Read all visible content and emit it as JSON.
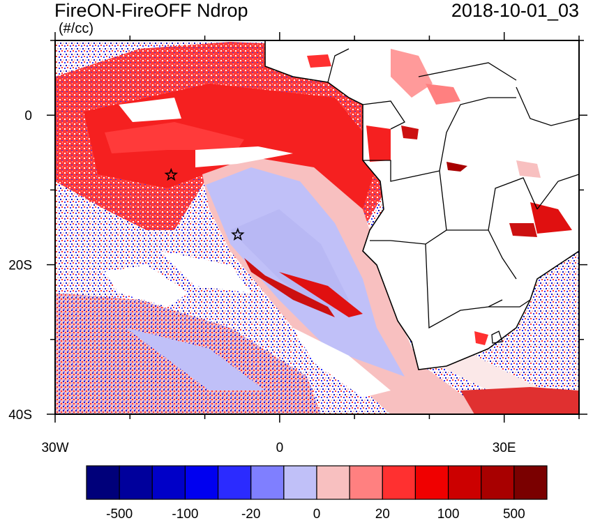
{
  "title": "FireON-FireOFF Ndrop",
  "timestamp": "2018-10-01_03",
  "units": "(#/cc)",
  "map": {
    "lon_range": [
      -30,
      40
    ],
    "lat_range": [
      -40,
      10
    ],
    "x_tick_labels": [
      "30W",
      "0",
      "30E"
    ],
    "y_tick_labels": [
      "0",
      "20S",
      "40S"
    ],
    "markers": [
      {
        "name": "star",
        "lon": -14.5,
        "lat": -8.0
      },
      {
        "name": "star",
        "lon": -5.6,
        "lat": -16.0
      }
    ]
  },
  "colorbar": {
    "colors": [
      "#00007a",
      "#00009c",
      "#0000c8",
      "#0000f0",
      "#2b2bff",
      "#7f7fff",
      "#c0c0f8",
      "#f8c0c0",
      "#ff8080",
      "#ff3030",
      "#f00000",
      "#cc0000",
      "#a80000",
      "#7a0000"
    ],
    "labels": [
      "-500",
      "-100",
      "-20",
      "0",
      "20",
      "100",
      "500"
    ]
  }
}
